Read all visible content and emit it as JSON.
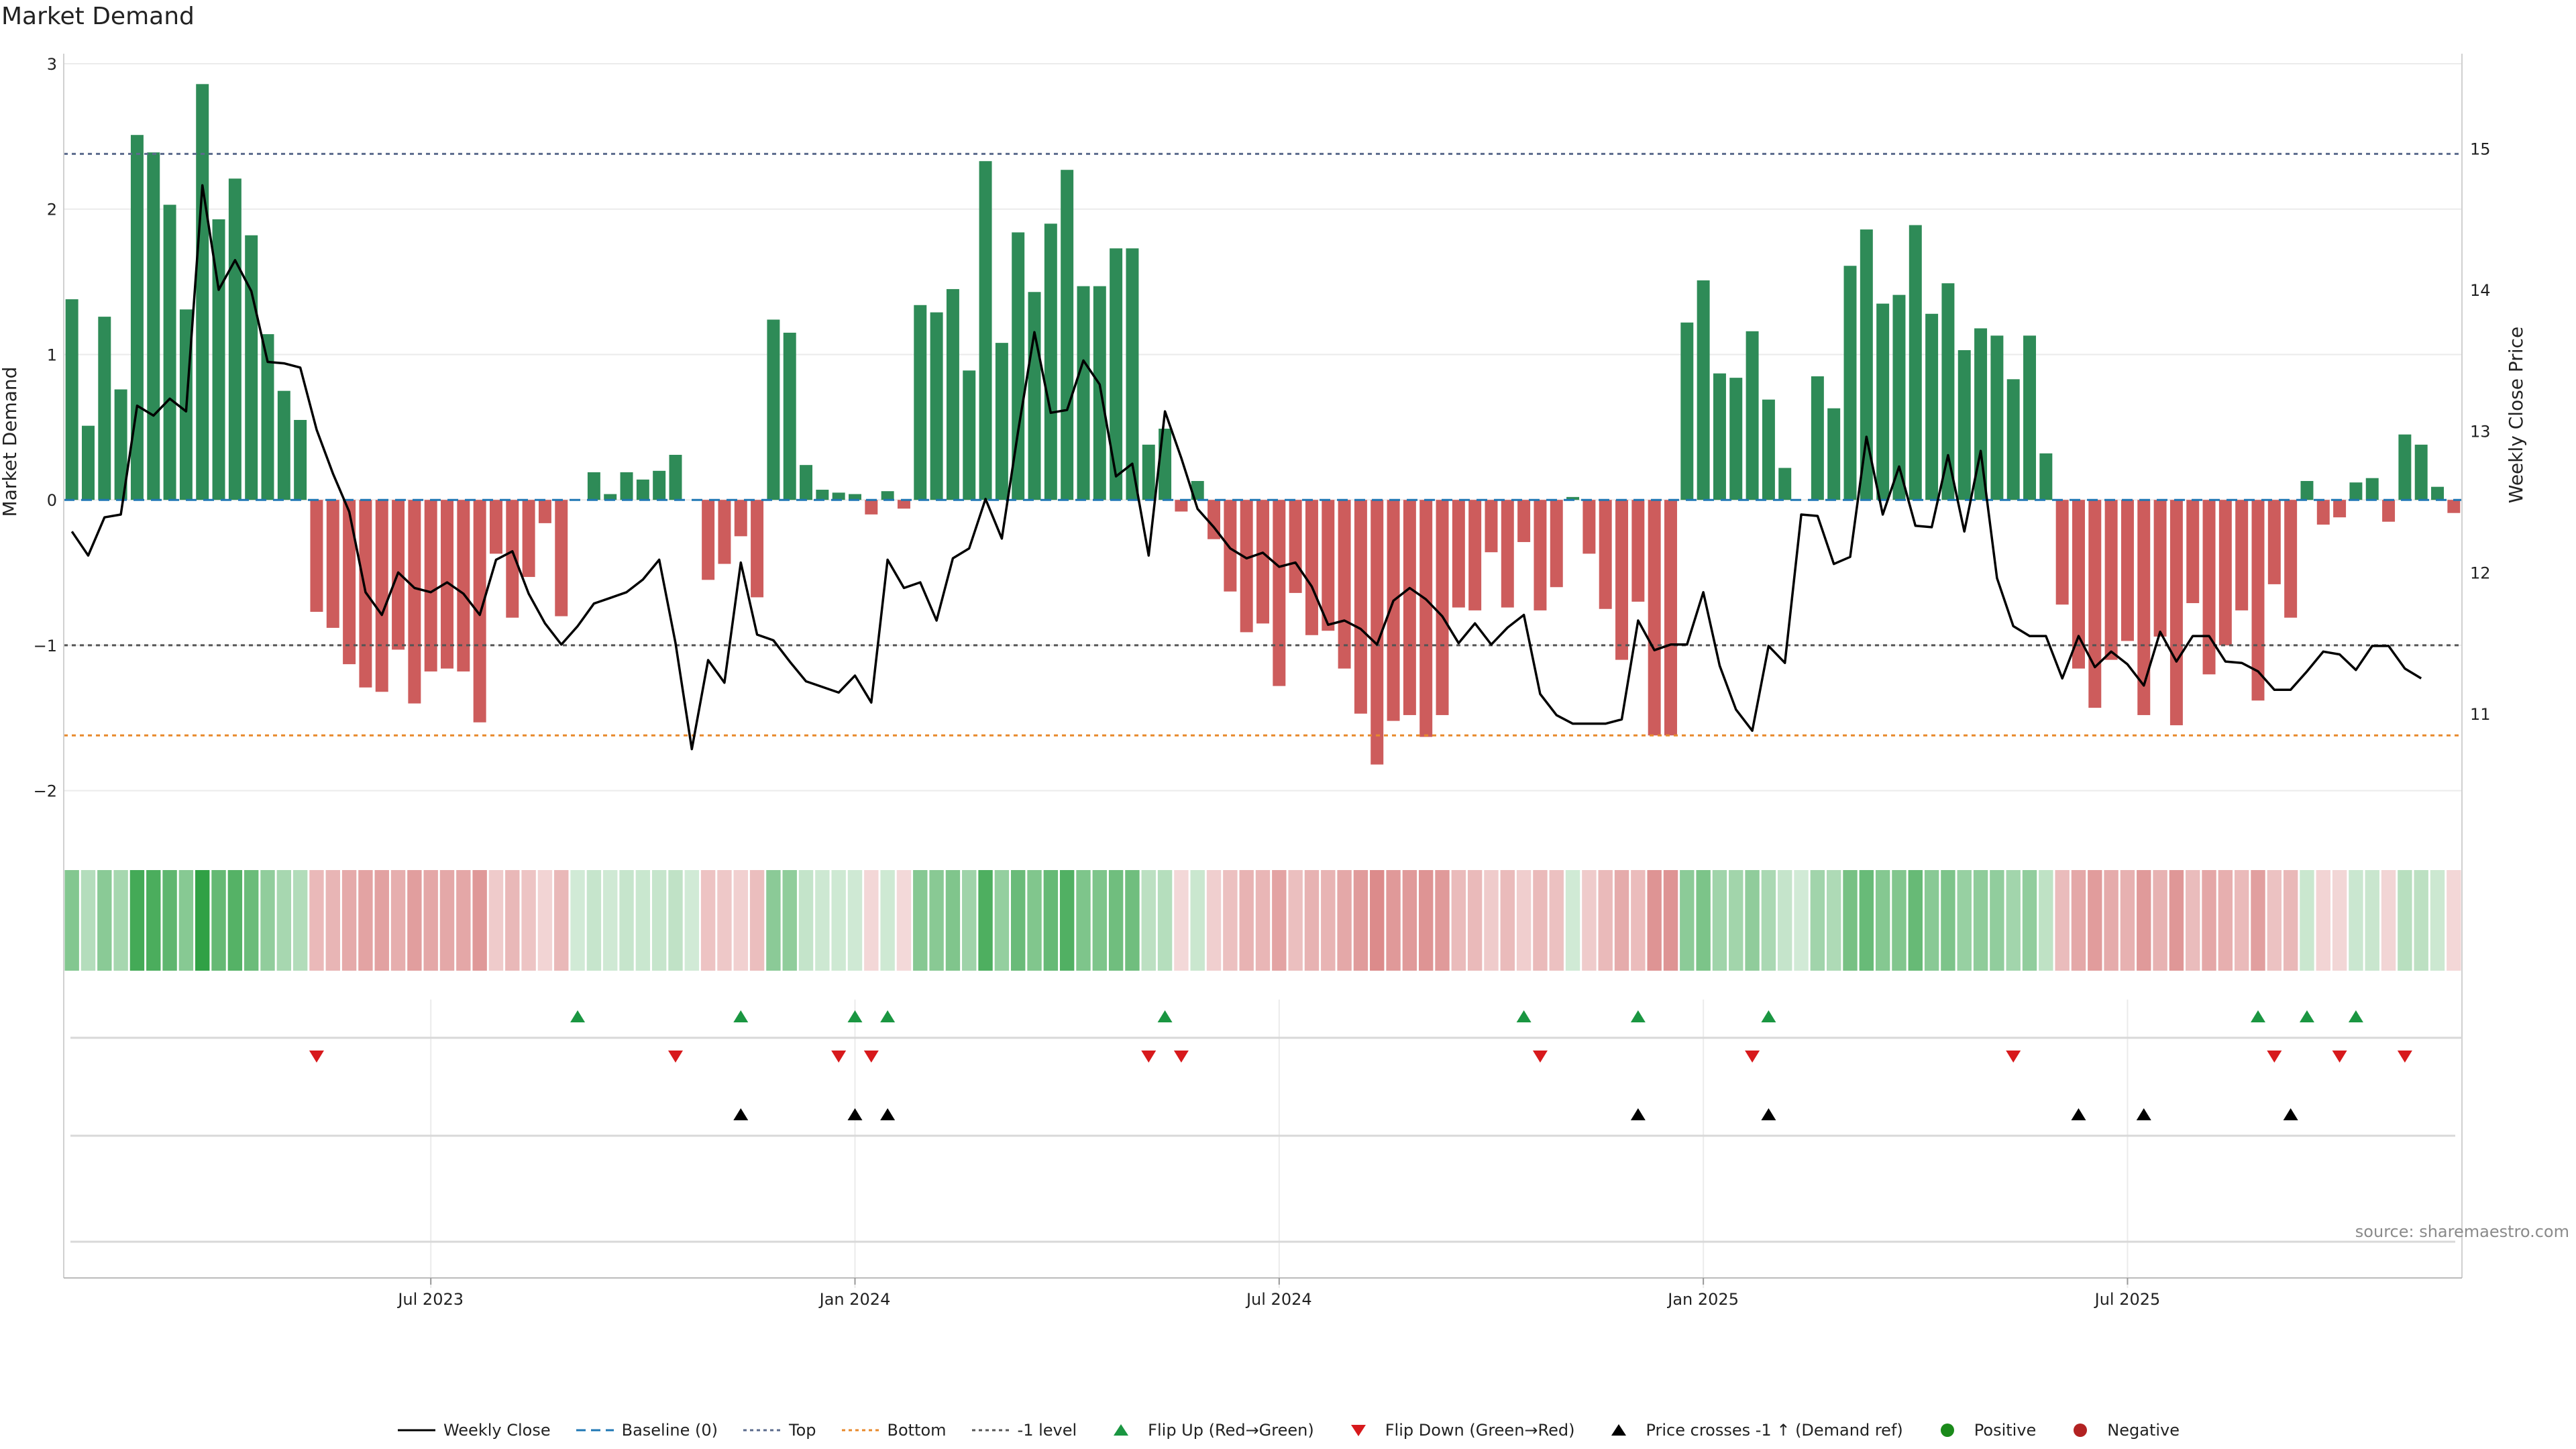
{
  "title": "Market Demand",
  "source": "source: sharemaestro.com",
  "colors": {
    "pos_bar": "#2e8b57",
    "neg_bar": "#cd5c5c",
    "price_line": "#000000",
    "baseline": "#1f77b4",
    "top_line": "#5b6b8c",
    "bottom_line": "#e8892b",
    "minus1_line": "#555555",
    "flip_up": "#1a9641",
    "flip_down": "#d7191c",
    "cross": "#000000",
    "positive": "#1a8a1a",
    "negative": "#b22222"
  },
  "legend": [
    {
      "key": "line",
      "label": "Weekly Close"
    },
    {
      "key": "baseline",
      "label": "Baseline (0)"
    },
    {
      "key": "top",
      "label": "Top"
    },
    {
      "key": "bottom",
      "label": "Bottom"
    },
    {
      "key": "minus1",
      "label": "-1 level"
    },
    {
      "key": "flip_up",
      "label": "Flip Up (Red→Green)"
    },
    {
      "key": "flip_down",
      "label": "Flip Down (Green→Red)"
    },
    {
      "key": "cross",
      "label": "Price crosses -1 ↑ (Demand ref)"
    },
    {
      "key": "positive",
      "label": "Positive"
    },
    {
      "key": "negative",
      "label": "Negative"
    }
  ],
  "chart_data": {
    "type": "bar+line",
    "title": "Market Demand",
    "ylabel": "Market Demand",
    "y2label": "Weekly Close Price",
    "ylim": [
      -2.2,
      3.0
    ],
    "y2lim": [
      10.25,
      15.6
    ],
    "yticks": [
      "3",
      "2",
      "1",
      "0",
      "−1",
      "−2"
    ],
    "yticks_values": [
      3,
      2,
      1,
      0,
      -1,
      -2
    ],
    "y2ticks": [
      "15",
      "14",
      "13",
      "12",
      "11"
    ],
    "y2ticks_values": [
      15,
      14,
      13,
      12,
      11
    ],
    "xticks": [
      "Jul 2023",
      "Jan 2024",
      "Jul 2024",
      "Jan 2025",
      "Jul 2025"
    ],
    "xticks_week_index": [
      22,
      48,
      74,
      100,
      126
    ],
    "levels": {
      "top": 2.38,
      "bottom": -1.62,
      "minus1": -1.0,
      "baseline": 0
    },
    "demand": [
      1.38,
      0.51,
      1.26,
      0.76,
      2.51,
      2.39,
      2.03,
      1.31,
      2.86,
      1.93,
      2.21,
      1.82,
      1.14,
      0.75,
      0.55,
      -0.77,
      -0.88,
      -1.13,
      -1.29,
      -1.32,
      -1.03,
      -1.4,
      -1.18,
      -1.16,
      -1.18,
      -1.53,
      -0.37,
      -0.81,
      -0.53,
      -0.16,
      -0.8,
      0.0,
      0.19,
      0.04,
      0.19,
      0.14,
      0.2,
      0.31,
      0.0,
      -0.55,
      -0.44,
      -0.25,
      -0.67,
      1.24,
      1.15,
      0.24,
      0.07,
      0.05,
      0.04,
      -0.1,
      0.06,
      -0.06,
      1.34,
      1.29,
      1.45,
      0.89,
      2.33,
      1.08,
      1.84,
      1.43,
      1.9,
      2.27,
      1.47,
      1.47,
      1.73,
      1.73,
      0.38,
      0.49,
      -0.08,
      0.13,
      -0.27,
      -0.63,
      -0.91,
      -0.85,
      -1.28,
      -0.64,
      -0.93,
      -0.9,
      -1.16,
      -1.47,
      -1.82,
      -1.52,
      -1.48,
      -1.63,
      -1.48,
      -0.74,
      -0.76,
      -0.36,
      -0.74,
      -0.29,
      -0.76,
      -0.6,
      0.02,
      -0.37,
      -0.75,
      -1.1,
      -0.7,
      -1.62,
      -1.62,
      1.22,
      1.51,
      0.87,
      0.84,
      1.16,
      0.69,
      0.22,
      0.0,
      0.85,
      0.63,
      1.61,
      1.86,
      1.35,
      1.41,
      1.89,
      1.28,
      1.49,
      1.03,
      1.18,
      1.13,
      0.83,
      1.13,
      0.32,
      -0.72,
      -1.16,
      -1.43,
      -1.1,
      -0.97,
      -1.48,
      -0.94,
      -1.55,
      -0.71,
      -1.2,
      -1.0,
      -0.76,
      -1.38,
      -0.58,
      -0.81,
      0.13,
      -0.17,
      -0.12,
      0.12,
      0.15,
      -0.15,
      0.45,
      0.38,
      0.09,
      -0.09
    ],
    "weekly_close": [
      12.29,
      12.12,
      12.39,
      12.41,
      13.18,
      13.11,
      13.23,
      13.14,
      14.74,
      14.0,
      14.21,
      13.99,
      13.49,
      13.48,
      13.45,
      13.01,
      12.7,
      12.43,
      11.86,
      11.7,
      12.0,
      11.89,
      11.86,
      11.93,
      11.85,
      11.7,
      12.09,
      12.15,
      11.85,
      11.64,
      11.49,
      11.62,
      11.78,
      11.82,
      11.86,
      11.95,
      12.09,
      11.5,
      10.75,
      11.38,
      11.22,
      12.07,
      11.56,
      11.52,
      11.37,
      11.23,
      11.19,
      11.15,
      11.27,
      11.08,
      12.09,
      11.89,
      11.93,
      11.66,
      12.1,
      12.17,
      12.52,
      12.24,
      13.0,
      13.7,
      13.13,
      13.15,
      13.5,
      13.33,
      12.68,
      12.77,
      12.12,
      13.14,
      12.81,
      12.45,
      12.32,
      12.17,
      12.1,
      12.14,
      12.04,
      12.07,
      11.9,
      11.63,
      11.66,
      11.6,
      11.49,
      11.8,
      11.89,
      11.81,
      11.69,
      11.5,
      11.64,
      11.49,
      11.61,
      11.7,
      11.14,
      10.99,
      10.93,
      10.93,
      10.93,
      10.96,
      11.66,
      11.45,
      11.49,
      11.49,
      11.86,
      11.34,
      11.03,
      10.88,
      11.48,
      11.36,
      12.41,
      12.4,
      12.06,
      12.11,
      12.96,
      12.41,
      12.75,
      12.33,
      12.32,
      12.83,
      12.29,
      12.86,
      11.96,
      11.62,
      11.55,
      11.55,
      11.25,
      11.55,
      11.33,
      11.44,
      11.35,
      11.2,
      11.58,
      11.37,
      11.55,
      11.55,
      11.37,
      11.36,
      11.3,
      11.17,
      11.17,
      11.3,
      11.44,
      11.42,
      11.31,
      11.48,
      11.48,
      11.32,
      11.25
    ],
    "flip_up_weeks": [
      31,
      41,
      48,
      50,
      67,
      89,
      96,
      104,
      134,
      137,
      140
    ],
    "flip_down_weeks": [
      15,
      37,
      47,
      49,
      66,
      68,
      90,
      103,
      119,
      135,
      139,
      143
    ],
    "price_cross_weeks": [
      41,
      48,
      50,
      96,
      104,
      123,
      127,
      136
    ]
  }
}
